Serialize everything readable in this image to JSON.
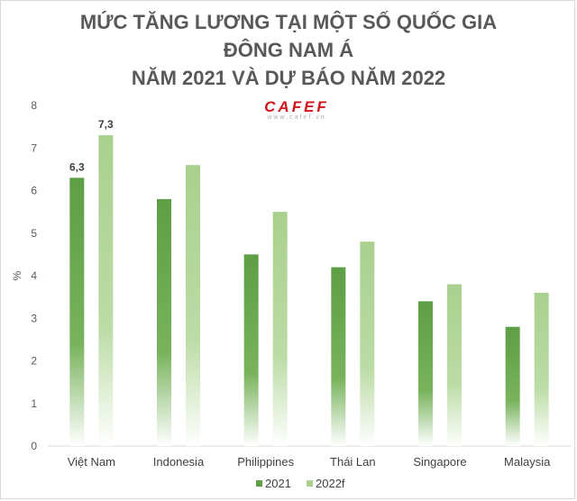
{
  "chart_data": {
    "type": "bar",
    "title": [
      "MỨC TĂNG LƯƠNG TẠI MỘT SỐ QUỐC GIA",
      "ĐÔNG NAM Á",
      "NĂM 2021 VÀ DỰ BÁO NĂM 2022"
    ],
    "watermark": "CAFEF",
    "watermark_sub": "www.cafef.vn",
    "ylabel": "%",
    "ylim": [
      0,
      8
    ],
    "yticks": [
      "0",
      "1",
      "2",
      "3",
      "4",
      "5",
      "6",
      "7",
      "8"
    ],
    "categories": [
      "Việt Nam",
      "Indonesia",
      "Philippines",
      "Thái Lan",
      "Singapore",
      "Malaysia"
    ],
    "series": [
      {
        "name": "2021",
        "values": [
          6.3,
          5.8,
          4.5,
          4.2,
          3.4,
          2.8
        ],
        "color": "#5e9e45"
      },
      {
        "name": "2022f",
        "values": [
          7.3,
          6.6,
          5.5,
          4.8,
          3.8,
          3.6
        ],
        "color": "#a9d08e"
      }
    ],
    "data_labels": [
      {
        "series": 0,
        "index": 0,
        "text": "6,3"
      },
      {
        "series": 1,
        "index": 0,
        "text": "7,3"
      }
    ],
    "grid": false,
    "legend": "bottom-center"
  }
}
